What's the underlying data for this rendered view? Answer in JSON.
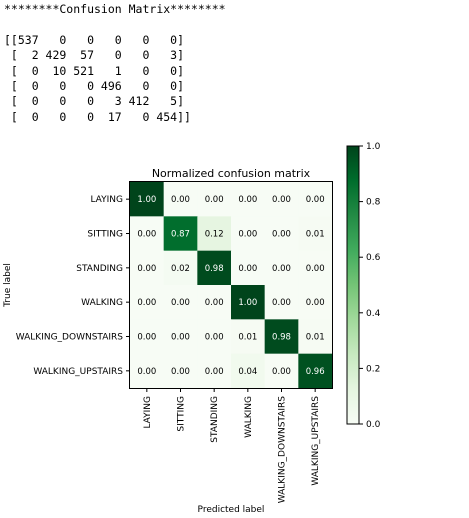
{
  "console": {
    "header": "********Confusion Matrix********",
    "matrix_lines": [
      "[[537   0   0   0   0   0]",
      " [  2 429  57   0   0   3]",
      " [  0  10 521   1   0   0]",
      " [  0   0   0 496   0   0]",
      " [  0   0   0   3 412   5]",
      " [  0   0   0  17   0 454]]"
    ]
  },
  "chart_data": {
    "type": "heatmap",
    "title": "Normalized confusion matrix",
    "xlabel": "Predicted label",
    "ylabel": "True label",
    "labels": [
      "LAYING",
      "SITTING",
      "STANDING",
      "WALKING",
      "WALKING_DOWNSTAIRS",
      "WALKING_UPSTAIRS"
    ],
    "values": [
      [
        1.0,
        0.0,
        0.0,
        0.0,
        0.0,
        0.0
      ],
      [
        0.0,
        0.87,
        0.12,
        0.0,
        0.0,
        0.01
      ],
      [
        0.0,
        0.02,
        0.98,
        0.0,
        0.0,
        0.0
      ],
      [
        0.0,
        0.0,
        0.0,
        1.0,
        0.0,
        0.0
      ],
      [
        0.0,
        0.0,
        0.0,
        0.01,
        0.98,
        0.01
      ],
      [
        0.0,
        0.0,
        0.0,
        0.04,
        0.0,
        0.96
      ]
    ],
    "colormap": "Greens",
    "color_low": "#f7fcf5",
    "color_high": "#00441b",
    "colorbar_ticks": [
      0.0,
      0.2,
      0.4,
      0.6,
      0.8,
      1.0
    ],
    "colorbar_tick_labels": [
      "0.0",
      "0.2",
      "0.4",
      "0.6",
      "0.8",
      "1.0"
    ],
    "vmin": 0.0,
    "vmax": 1.0
  }
}
